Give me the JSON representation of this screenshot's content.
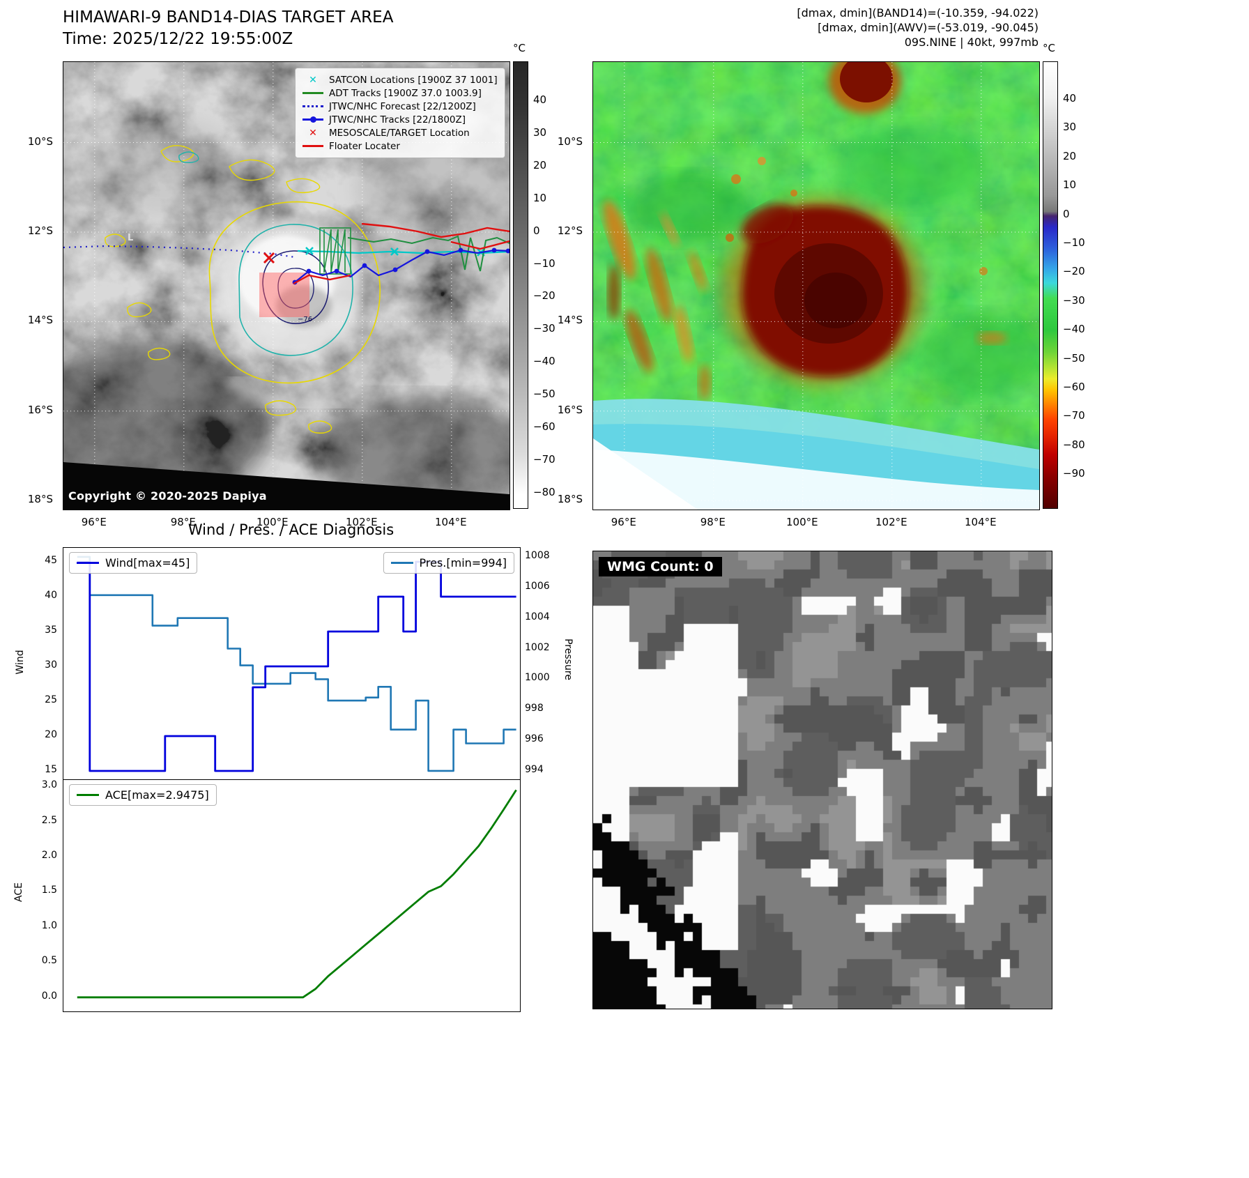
{
  "header": {
    "title_line1": "HIMAWARI-9 BAND14-DIAS TARGET AREA",
    "title_line2": "Time: 2025/12/22 19:55:00Z",
    "info_line1": "[dmax, dmin](BAND14)=(-10.359, -94.022)",
    "info_line2": "[dmax, dmin](AWV)=(-53.019, -90.045)",
    "info_line3": "09S.NINE | 40kt, 997mb"
  },
  "band14": {
    "legend": [
      {
        "marker": "x-cyan",
        "label": "SATCON Locations [1900Z 37 1001]"
      },
      {
        "marker": "line-green",
        "label": "ADT Tracks [1900Z 37.0 1003.9]"
      },
      {
        "marker": "line-dotted-blue",
        "label": "JTWC/NHC Forecast [22/1200Z]"
      },
      {
        "marker": "line-dot-blue",
        "label": "JTWC/NHC Tracks [22/1800Z]"
      },
      {
        "marker": "x-red",
        "label": "MESOSCALE/TARGET Location"
      },
      {
        "marker": "line-red",
        "label": "Floater Locater"
      }
    ],
    "copyright": "Copyright © 2020-2025 Dapiya",
    "x_ticks": [
      "96°E",
      "98°E",
      "100°E",
      "102°E",
      "104°E"
    ],
    "y_ticks": [
      "10°S",
      "12°S",
      "14°S",
      "16°S",
      "18°S"
    ],
    "colorbar_unit": "°C",
    "colorbar_ticks": [
      "40",
      "30",
      "20",
      "10",
      "0",
      "−10",
      "−20",
      "−30",
      "−40",
      "−50",
      "−60",
      "−70",
      "−80"
    ],
    "contour_label": "−76",
    "low_marker": "L"
  },
  "awv": {
    "x_ticks": [
      "96°E",
      "98°E",
      "100°E",
      "102°E",
      "104°E"
    ],
    "y_ticks": [
      "10°S",
      "12°S",
      "14°S",
      "16°S",
      "18°S"
    ],
    "colorbar_unit": "°C",
    "colorbar_ticks": [
      "40",
      "30",
      "20",
      "10",
      "0",
      "−10",
      "−20",
      "−30",
      "−40",
      "−50",
      "−60",
      "−70",
      "−80",
      "−90"
    ]
  },
  "diagnosis": {
    "title": "Wind / Pres. / ACE Diagnosis"
  },
  "wmg": {
    "label": "WMG Count: 0"
  },
  "chart_data": [
    {
      "type": "line",
      "title": "Wind / Pres. / ACE Diagnosis",
      "x": [
        0,
        1,
        2,
        3,
        4,
        5,
        6,
        7,
        8,
        9,
        10,
        11,
        12,
        13,
        14,
        15,
        16,
        17,
        18,
        19,
        20,
        21,
        22,
        23,
        24,
        25,
        26,
        27,
        28,
        29,
        30,
        31,
        32,
        33,
        34,
        35
      ],
      "xlim": [
        -1.1,
        35.3
      ],
      "series": [
        {
          "name": "Wind[max=45]",
          "axis": "left",
          "color": "#0000dd",
          "values": [
            45,
            15,
            15,
            15,
            15,
            15,
            15,
            20,
            20,
            20,
            20,
            15,
            15,
            15,
            27,
            30,
            30,
            30,
            30,
            30,
            35,
            35,
            35,
            35,
            40,
            40,
            35,
            45,
            45,
            40,
            40,
            40,
            40,
            40,
            40,
            40
          ]
        },
        {
          "name": "Pres.[min=994]",
          "axis": "right",
          "color": "#1f77b4",
          "values": [
            1008,
            1005.5,
            1005.5,
            1005.5,
            1005.5,
            1005.5,
            1003.5,
            1003.5,
            1004,
            1004,
            1004,
            1004,
            1002,
            1000.9,
            999.7,
            999.7,
            999.7,
            1000.4,
            1000.4,
            1000,
            998.6,
            998.6,
            998.6,
            998.8,
            999.5,
            996.7,
            996.7,
            998.6,
            994,
            994,
            996.7,
            995.8,
            995.8,
            995.8,
            996.7,
            996.7
          ]
        }
      ],
      "ylabel_left": "Wind",
      "ylabel_right": "Pressure",
      "ylim_left": [
        13.8,
        47.0
      ],
      "ylim_right": [
        993.45,
        1008.59
      ],
      "yticks_left": [
        15,
        20,
        25,
        30,
        35,
        40,
        45
      ],
      "yticks_right": [
        994,
        996,
        998,
        1000,
        1002,
        1004,
        1006,
        1008
      ]
    },
    {
      "type": "line",
      "x": [
        0,
        1,
        2,
        3,
        4,
        5,
        6,
        7,
        8,
        9,
        10,
        11,
        12,
        13,
        14,
        15,
        16,
        17,
        18,
        19,
        20,
        21,
        22,
        23,
        24,
        25,
        26,
        27,
        28,
        29,
        30,
        31,
        32,
        33,
        34,
        35
      ],
      "xlim": [
        -1.1,
        35.3
      ],
      "series": [
        {
          "name": "ACE[max=2.9475]",
          "color": "#007d00",
          "values": [
            0,
            0,
            0,
            0,
            0,
            0,
            0,
            0,
            0,
            0,
            0,
            0,
            0,
            0,
            0,
            0,
            0,
            0,
            0,
            0.12,
            0.3,
            0.45,
            0.6,
            0.75,
            0.9,
            1.05,
            1.2,
            1.35,
            1.5,
            1.58,
            1.75,
            1.95,
            2.15,
            2.4,
            2.67,
            2.9475
          ]
        }
      ],
      "ylabel": "ACE",
      "ylim": [
        -0.2,
        3.09
      ],
      "yticks": [
        0,
        0.5,
        1,
        1.5,
        2,
        2.5,
        3
      ]
    }
  ]
}
